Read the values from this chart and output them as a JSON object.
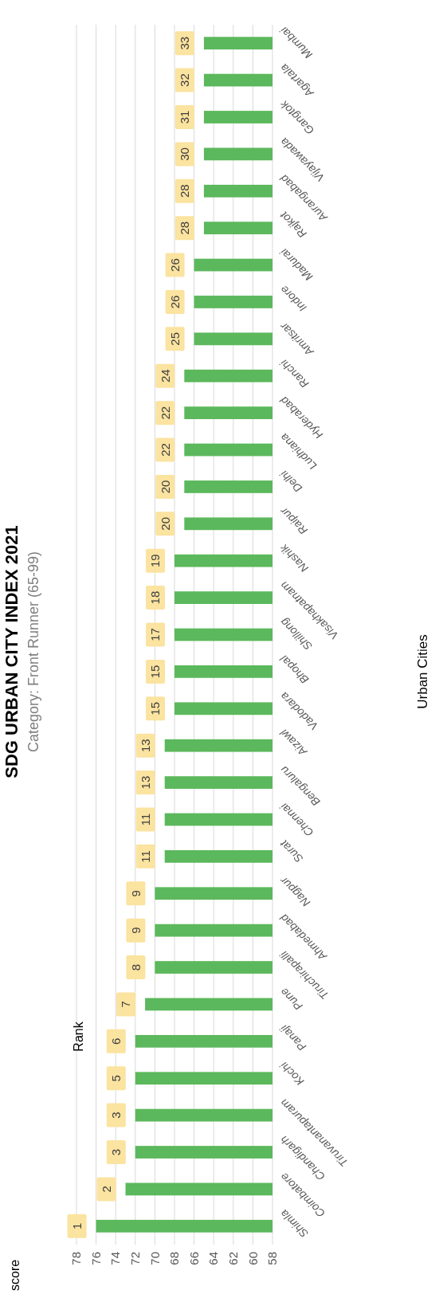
{
  "chart_data": {
    "type": "bar",
    "orientation": "horizontal",
    "title": "SDG URBAN CITY INDEX 2021",
    "subtitle": "Category: Front Runner (65-99)",
    "categories": [
      "Mumbai",
      "Agartala",
      "Gangtok",
      "Vijayawada",
      "Aurangabad",
      "Rajkot",
      "Madurai",
      "Indore",
      "Amritsar",
      "Ranchi",
      "Hyderabad",
      "Ludhiana",
      "Delhi",
      "Raipur",
      "Nashik",
      "Visakhapatnam",
      "Shillong",
      "Bhopal",
      "Vadodara",
      "Aizawl",
      "Bengaluru",
      "Chennai",
      "Surat",
      "Nagpur",
      "Ahmedabad",
      "Tiruchirapalli",
      "Pune",
      "Panaji",
      "Kochi",
      "Tiruvanantapuram",
      "Chandigarh",
      "Coimbatore",
      "Shimla"
    ],
    "series": [
      {
        "color": "#5cb85c",
        "values": [
          65,
          65,
          65,
          65,
          65,
          65,
          66,
          66,
          66,
          67,
          67,
          67,
          67,
          67,
          68,
          68,
          68,
          68,
          68,
          69,
          69,
          69,
          69,
          70,
          70,
          70,
          71,
          72,
          72,
          72,
          72,
          73,
          76
        ]
      }
    ],
    "annotations": [
      "33",
      "32",
      "31",
      "30",
      "28",
      "28",
      "26",
      "26",
      "25",
      "24",
      "22",
      "22",
      "20",
      "20",
      "19",
      "18",
      "17",
      "15",
      "15",
      "13",
      "13",
      "11",
      "11",
      "9",
      "9",
      "8",
      "7",
      "6",
      "5",
      "3",
      "3",
      "2",
      "1",
      "Rank",
      "score",
      "Urban Cities"
    ],
    "xlim": [
      78,
      58
    ],
    "xticks": [
      78,
      76,
      74,
      72,
      70,
      68,
      66,
      64,
      62,
      60,
      58
    ],
    "grid": "x"
  }
}
